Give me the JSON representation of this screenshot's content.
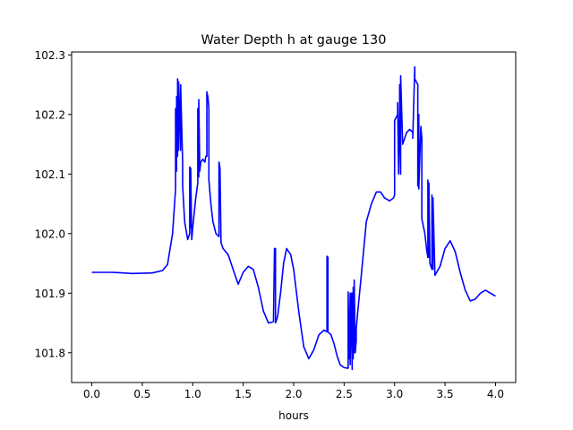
{
  "chart_data": {
    "type": "line",
    "title": "Water Depth h at gauge 130",
    "xlabel": "hours",
    "ylabel": "",
    "xlim": [
      -0.2,
      4.2
    ],
    "ylim": [
      101.75,
      102.305
    ],
    "xticks": [
      0.0,
      0.5,
      1.0,
      1.5,
      2.0,
      2.5,
      3.0,
      3.5,
      4.0
    ],
    "xtick_labels": [
      "0.0",
      "0.5",
      "1.0",
      "1.5",
      "2.0",
      "2.5",
      "3.0",
      "3.5",
      "4.0"
    ],
    "yticks": [
      101.8,
      101.9,
      102.0,
      102.1,
      102.2,
      102.3
    ],
    "ytick_labels": [
      "101.8",
      "101.9",
      "102.0",
      "102.1",
      "102.2",
      "102.3"
    ],
    "grid": false,
    "series": [
      {
        "name": "",
        "color": "#0000ff",
        "x": [
          0.0,
          0.2,
          0.4,
          0.6,
          0.7,
          0.75,
          0.8,
          0.83,
          0.83,
          0.84,
          0.84,
          0.85,
          0.85,
          0.86,
          0.86,
          0.88,
          0.88,
          0.9,
          0.9,
          0.92,
          0.95,
          0.97,
          0.97,
          0.98,
          0.98,
          0.99,
          1.0,
          1.03,
          1.05,
          1.05,
          1.06,
          1.06,
          1.07,
          1.08,
          1.1,
          1.12,
          1.13,
          1.14,
          1.14,
          1.15,
          1.16,
          1.16,
          1.18,
          1.2,
          1.23,
          1.26,
          1.26,
          1.27,
          1.28,
          1.3,
          1.35,
          1.4,
          1.45,
          1.5,
          1.55,
          1.6,
          1.65,
          1.7,
          1.75,
          1.8,
          1.81,
          1.82,
          1.82,
          1.84,
          1.87,
          1.9,
          1.93,
          1.97,
          2.0,
          2.05,
          2.1,
          2.15,
          2.2,
          2.25,
          2.3,
          2.33,
          2.33,
          2.34,
          2.34,
          2.37,
          2.4,
          2.43,
          2.46,
          2.5,
          2.54,
          2.54,
          2.55,
          2.56,
          2.56,
          2.57,
          2.58,
          2.58,
          2.59,
          2.59,
          2.6,
          2.6,
          2.61,
          2.62,
          2.62,
          2.63,
          2.67,
          2.72,
          2.77,
          2.82,
          2.86,
          2.9,
          2.95,
          2.99,
          3.0,
          3.0,
          3.03,
          3.03,
          3.04,
          3.05,
          3.05,
          3.06,
          3.06,
          3.08,
          3.12,
          3.15,
          3.18,
          3.18,
          3.2,
          3.2,
          3.23,
          3.23,
          3.24,
          3.24,
          3.26,
          3.27,
          3.27,
          3.3,
          3.32,
          3.33,
          3.33,
          3.34,
          3.34,
          3.35,
          3.36,
          3.37,
          3.37,
          3.38,
          3.38,
          3.4,
          3.45,
          3.5,
          3.55,
          3.6,
          3.65,
          3.7,
          3.75,
          3.8,
          3.85,
          3.9,
          3.95,
          4.0
        ],
        "y": [
          101.935,
          101.935,
          101.933,
          101.934,
          101.938,
          101.948,
          102.0,
          102.075,
          102.21,
          102.105,
          102.23,
          102.13,
          102.26,
          102.14,
          102.255,
          102.14,
          102.25,
          102.12,
          102.08,
          102.02,
          101.99,
          102.0,
          102.112,
          102.01,
          102.11,
          101.99,
          102.01,
          102.06,
          102.085,
          102.21,
          102.095,
          102.225,
          102.105,
          102.12,
          102.125,
          102.12,
          102.13,
          102.13,
          102.238,
          102.23,
          102.21,
          102.09,
          102.05,
          102.02,
          102.0,
          101.995,
          102.12,
          102.11,
          101.985,
          101.975,
          101.965,
          101.94,
          101.915,
          101.935,
          101.945,
          101.94,
          101.91,
          101.87,
          101.85,
          101.852,
          101.975,
          101.975,
          101.85,
          101.86,
          101.9,
          101.95,
          101.975,
          101.965,
          101.94,
          101.87,
          101.81,
          101.79,
          101.805,
          101.83,
          101.838,
          101.835,
          101.962,
          101.96,
          101.835,
          101.83,
          101.815,
          101.795,
          101.78,
          101.775,
          101.774,
          101.902,
          101.79,
          101.9,
          101.78,
          101.9,
          101.772,
          101.9,
          101.79,
          101.91,
          101.8,
          101.922,
          101.8,
          101.82,
          101.84,
          101.86,
          101.93,
          102.02,
          102.05,
          102.07,
          102.07,
          102.06,
          102.055,
          102.06,
          102.065,
          102.19,
          102.2,
          102.22,
          102.1,
          102.22,
          102.25,
          102.1,
          102.265,
          102.15,
          102.17,
          102.175,
          102.17,
          102.16,
          102.28,
          102.26,
          102.25,
          102.08,
          102.2,
          102.075,
          102.18,
          102.16,
          102.025,
          102.0,
          101.97,
          101.96,
          102.09,
          101.96,
          102.085,
          101.95,
          101.945,
          101.94,
          102.065,
          101.94,
          102.06,
          101.93,
          101.945,
          101.975,
          101.988,
          101.97,
          101.935,
          101.905,
          101.887,
          101.89,
          101.9,
          101.905,
          101.9,
          101.895
        ]
      }
    ]
  }
}
